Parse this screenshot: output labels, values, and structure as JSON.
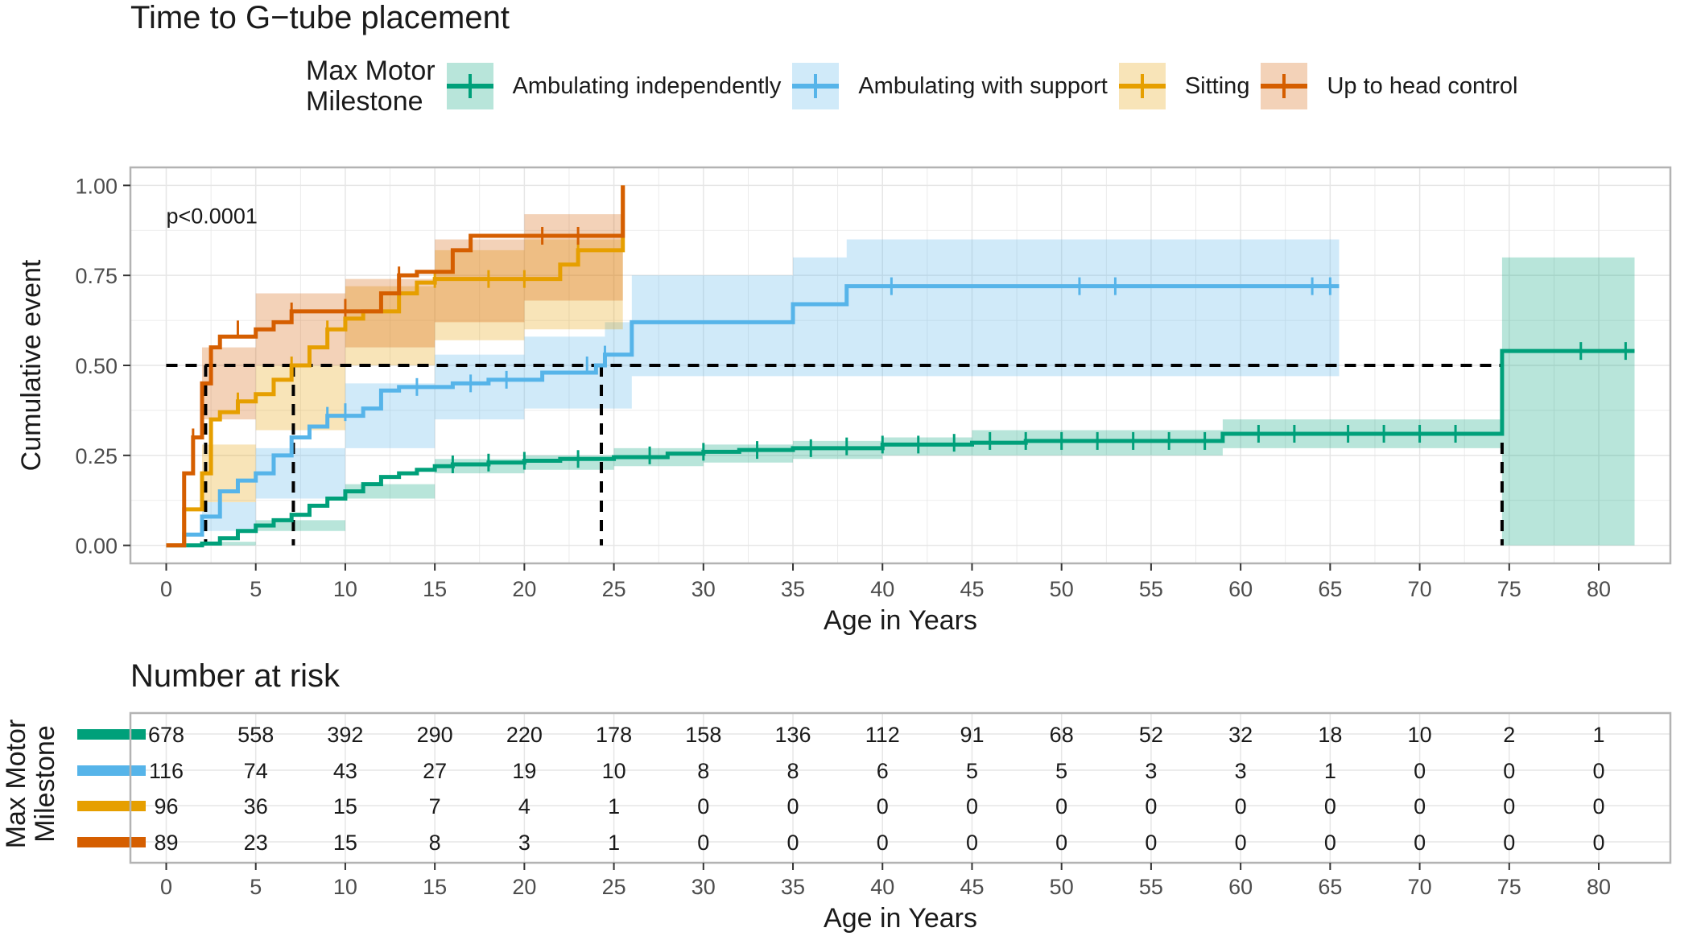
{
  "title": "Time to G−tube placement",
  "risk_table": {
    "title": "Number at risk",
    "ylabel": "Max Motor\nMilestone",
    "xlabel": "Age in Years",
    "times": [
      0,
      5,
      10,
      15,
      20,
      25,
      30,
      35,
      40,
      45,
      50,
      55,
      60,
      65,
      70,
      75,
      80
    ],
    "rows": [
      {
        "series": "Ambulating independently",
        "color": "#00a07a",
        "values": [
          678,
          558,
          392,
          290,
          220,
          178,
          158,
          136,
          112,
          91,
          68,
          52,
          32,
          18,
          10,
          2,
          1
        ]
      },
      {
        "series": "Ambulating with support",
        "color": "#56b4e9",
        "values": [
          116,
          74,
          43,
          27,
          19,
          10,
          8,
          8,
          6,
          5,
          5,
          3,
          3,
          1,
          0,
          0,
          0
        ]
      },
      {
        "series": "Sitting",
        "color": "#e69f00",
        "values": [
          96,
          36,
          15,
          7,
          4,
          1,
          0,
          0,
          0,
          0,
          0,
          0,
          0,
          0,
          0,
          0,
          0
        ]
      },
      {
        "series": "Up to head control",
        "color": "#d55e00",
        "values": [
          89,
          23,
          15,
          8,
          3,
          1,
          0,
          0,
          0,
          0,
          0,
          0,
          0,
          0,
          0,
          0,
          0
        ]
      }
    ]
  },
  "chart_data": {
    "type": "line",
    "title": "Time to G−tube placement",
    "xlabel": "Age in Years",
    "ylabel": "Cumulative event",
    "xlim": [
      -2,
      84
    ],
    "ylim": [
      -0.05,
      1.05
    ],
    "xticks": [
      0,
      5,
      10,
      15,
      20,
      25,
      30,
      35,
      40,
      45,
      50,
      55,
      60,
      65,
      70,
      75,
      80
    ],
    "yticks": [
      0.0,
      0.25,
      0.5,
      0.75,
      1.0
    ],
    "ytick_labels": [
      "0.00",
      "0.25",
      "0.50",
      "0.75",
      "1.00"
    ],
    "grid": true,
    "annotation": "p<0.0001",
    "legend": {
      "title": "Max Motor\nMilestone",
      "position": "top"
    },
    "median_reference": {
      "y": 0.5,
      "medians": [
        2.2,
        7.1,
        24.3,
        74.6
      ]
    },
    "series": [
      {
        "name": "Ambulating independently",
        "color": "#00a07a",
        "steps": [
          [
            0,
            0
          ],
          [
            2,
            0.005
          ],
          [
            3,
            0.02
          ],
          [
            4,
            0.04
          ],
          [
            5,
            0.055
          ],
          [
            6,
            0.07
          ],
          [
            7,
            0.085
          ],
          [
            8,
            0.11
          ],
          [
            9,
            0.13
          ],
          [
            10,
            0.15
          ],
          [
            11,
            0.17
          ],
          [
            12,
            0.19
          ],
          [
            13,
            0.2
          ],
          [
            14,
            0.21
          ],
          [
            15,
            0.22
          ],
          [
            16,
            0.225
          ],
          [
            18,
            0.23
          ],
          [
            20,
            0.235
          ],
          [
            22,
            0.24
          ],
          [
            25,
            0.245
          ],
          [
            28,
            0.255
          ],
          [
            30,
            0.26
          ],
          [
            32,
            0.265
          ],
          [
            35,
            0.27
          ],
          [
            40,
            0.28
          ],
          [
            45,
            0.285
          ],
          [
            48,
            0.29
          ],
          [
            59,
            0.31
          ],
          [
            74.6,
            0.54
          ],
          [
            82,
            0.54
          ]
        ],
        "lower": [
          [
            0,
            0
          ],
          [
            2,
            0
          ],
          [
            5,
            0.04
          ],
          [
            10,
            0.13
          ],
          [
            15,
            0.2
          ],
          [
            20,
            0.21
          ],
          [
            25,
            0.22
          ],
          [
            30,
            0.23
          ],
          [
            35,
            0.24
          ],
          [
            40,
            0.25
          ],
          [
            45,
            0.25
          ],
          [
            59,
            0.27
          ],
          [
            74.6,
            0
          ],
          [
            82,
            0
          ]
        ],
        "upper": [
          [
            0,
            0
          ],
          [
            2,
            0.01
          ],
          [
            5,
            0.07
          ],
          [
            10,
            0.17
          ],
          [
            15,
            0.24
          ],
          [
            20,
            0.25
          ],
          [
            25,
            0.27
          ],
          [
            30,
            0.28
          ],
          [
            35,
            0.29
          ],
          [
            40,
            0.3
          ],
          [
            45,
            0.32
          ],
          [
            59,
            0.35
          ],
          [
            74.6,
            0.8
          ],
          [
            82,
            0.8
          ]
        ],
        "censors": [
          [
            16,
            0.225
          ],
          [
            18,
            0.23
          ],
          [
            20,
            0.235
          ],
          [
            23,
            0.24
          ],
          [
            27,
            0.25
          ],
          [
            30,
            0.26
          ],
          [
            33,
            0.265
          ],
          [
            36,
            0.27
          ],
          [
            38,
            0.275
          ],
          [
            40,
            0.28
          ],
          [
            42,
            0.28
          ],
          [
            44,
            0.285
          ],
          [
            46,
            0.29
          ],
          [
            48,
            0.29
          ],
          [
            50,
            0.29
          ],
          [
            52,
            0.29
          ],
          [
            54,
            0.29
          ],
          [
            56,
            0.29
          ],
          [
            58,
            0.29
          ],
          [
            61,
            0.31
          ],
          [
            63,
            0.31
          ],
          [
            66,
            0.31
          ],
          [
            68,
            0.31
          ],
          [
            70,
            0.31
          ],
          [
            72,
            0.31
          ],
          [
            79,
            0.54
          ],
          [
            81.5,
            0.54
          ]
        ]
      },
      {
        "name": "Ambulating with support",
        "color": "#56b4e9",
        "steps": [
          [
            0,
            0
          ],
          [
            1,
            0.03
          ],
          [
            2,
            0.08
          ],
          [
            3,
            0.15
          ],
          [
            4,
            0.18
          ],
          [
            5,
            0.2
          ],
          [
            6,
            0.25
          ],
          [
            7,
            0.3
          ],
          [
            8,
            0.33
          ],
          [
            9,
            0.36
          ],
          [
            11,
            0.38
          ],
          [
            12,
            0.43
          ],
          [
            13,
            0.44
          ],
          [
            16,
            0.45
          ],
          [
            18,
            0.46
          ],
          [
            21,
            0.48
          ],
          [
            24,
            0.5
          ],
          [
            24.5,
            0.53
          ],
          [
            26,
            0.62
          ],
          [
            35,
            0.67
          ],
          [
            38,
            0.72
          ],
          [
            65.5,
            0.72
          ]
        ],
        "lower": [
          [
            0,
            0
          ],
          [
            2,
            0.04
          ],
          [
            5,
            0.13
          ],
          [
            10,
            0.27
          ],
          [
            15,
            0.35
          ],
          [
            20,
            0.38
          ],
          [
            24.5,
            0.38
          ],
          [
            26,
            0.47
          ],
          [
            35,
            0.47
          ],
          [
            38,
            0.47
          ],
          [
            65.5,
            0.5
          ]
        ],
        "upper": [
          [
            0,
            0
          ],
          [
            2,
            0.12
          ],
          [
            5,
            0.27
          ],
          [
            10,
            0.45
          ],
          [
            15,
            0.53
          ],
          [
            20,
            0.58
          ],
          [
            24.5,
            0.62
          ],
          [
            26,
            0.75
          ],
          [
            35,
            0.8
          ],
          [
            38,
            0.85
          ],
          [
            65.5,
            0.85
          ]
        ],
        "censors": [
          [
            9,
            0.36
          ],
          [
            10,
            0.37
          ],
          [
            14,
            0.44
          ],
          [
            17,
            0.45
          ],
          [
            19,
            0.46
          ],
          [
            23.5,
            0.5
          ],
          [
            24.5,
            0.53
          ],
          [
            40.5,
            0.72
          ],
          [
            51,
            0.72
          ],
          [
            53,
            0.72
          ],
          [
            64,
            0.72
          ],
          [
            65,
            0.72
          ]
        ]
      },
      {
        "name": "Sitting",
        "color": "#e69f00",
        "steps": [
          [
            0,
            0
          ],
          [
            1,
            0.1
          ],
          [
            2,
            0.2
          ],
          [
            2.5,
            0.35
          ],
          [
            3,
            0.37
          ],
          [
            4,
            0.4
          ],
          [
            5,
            0.42
          ],
          [
            6,
            0.46
          ],
          [
            7,
            0.5
          ],
          [
            8,
            0.55
          ],
          [
            9,
            0.6
          ],
          [
            10,
            0.63
          ],
          [
            11,
            0.65
          ],
          [
            13,
            0.7
          ],
          [
            14,
            0.73
          ],
          [
            15,
            0.74
          ],
          [
            22,
            0.78
          ],
          [
            23,
            0.82
          ],
          [
            25.5,
            0.83
          ],
          [
            25.5,
            1.0
          ]
        ],
        "lower": [
          [
            0,
            0
          ],
          [
            2,
            0.12
          ],
          [
            5,
            0.32
          ],
          [
            10,
            0.5
          ],
          [
            15,
            0.57
          ],
          [
            20,
            0.6
          ],
          [
            25.5,
            0.6
          ]
        ],
        "upper": [
          [
            0,
            0
          ],
          [
            2,
            0.28
          ],
          [
            5,
            0.5
          ],
          [
            10,
            0.72
          ],
          [
            15,
            0.82
          ],
          [
            20,
            0.85
          ],
          [
            25.5,
            0.95
          ]
        ],
        "censors": [
          [
            4,
            0.4
          ],
          [
            7,
            0.5
          ],
          [
            9,
            0.6
          ],
          [
            15,
            0.74
          ],
          [
            18,
            0.74
          ],
          [
            20,
            0.74
          ],
          [
            23,
            0.82
          ]
        ]
      },
      {
        "name": "Up to head control",
        "color": "#d55e00",
        "steps": [
          [
            0,
            0
          ],
          [
            1,
            0.2
          ],
          [
            1.5,
            0.3
          ],
          [
            2,
            0.45
          ],
          [
            2.5,
            0.55
          ],
          [
            3,
            0.58
          ],
          [
            5,
            0.6
          ],
          [
            6,
            0.62
          ],
          [
            7,
            0.65
          ],
          [
            12,
            0.7
          ],
          [
            13,
            0.75
          ],
          [
            14,
            0.76
          ],
          [
            16,
            0.82
          ],
          [
            17,
            0.86
          ],
          [
            25.5,
            0.86
          ],
          [
            25.5,
            1.0
          ]
        ],
        "lower": [
          [
            0,
            0
          ],
          [
            2,
            0.35
          ],
          [
            5,
            0.5
          ],
          [
            10,
            0.55
          ],
          [
            15,
            0.62
          ],
          [
            20,
            0.68
          ],
          [
            25.5,
            0.7
          ]
        ],
        "upper": [
          [
            0,
            0
          ],
          [
            2,
            0.55
          ],
          [
            5,
            0.7
          ],
          [
            10,
            0.74
          ],
          [
            15,
            0.85
          ],
          [
            20,
            0.92
          ],
          [
            25.5,
            1.0
          ]
        ],
        "censors": [
          [
            1.5,
            0.3
          ],
          [
            4,
            0.6
          ],
          [
            7,
            0.65
          ],
          [
            10,
            0.66
          ],
          [
            13,
            0.75
          ],
          [
            21,
            0.86
          ],
          [
            23,
            0.86
          ]
        ]
      }
    ]
  }
}
